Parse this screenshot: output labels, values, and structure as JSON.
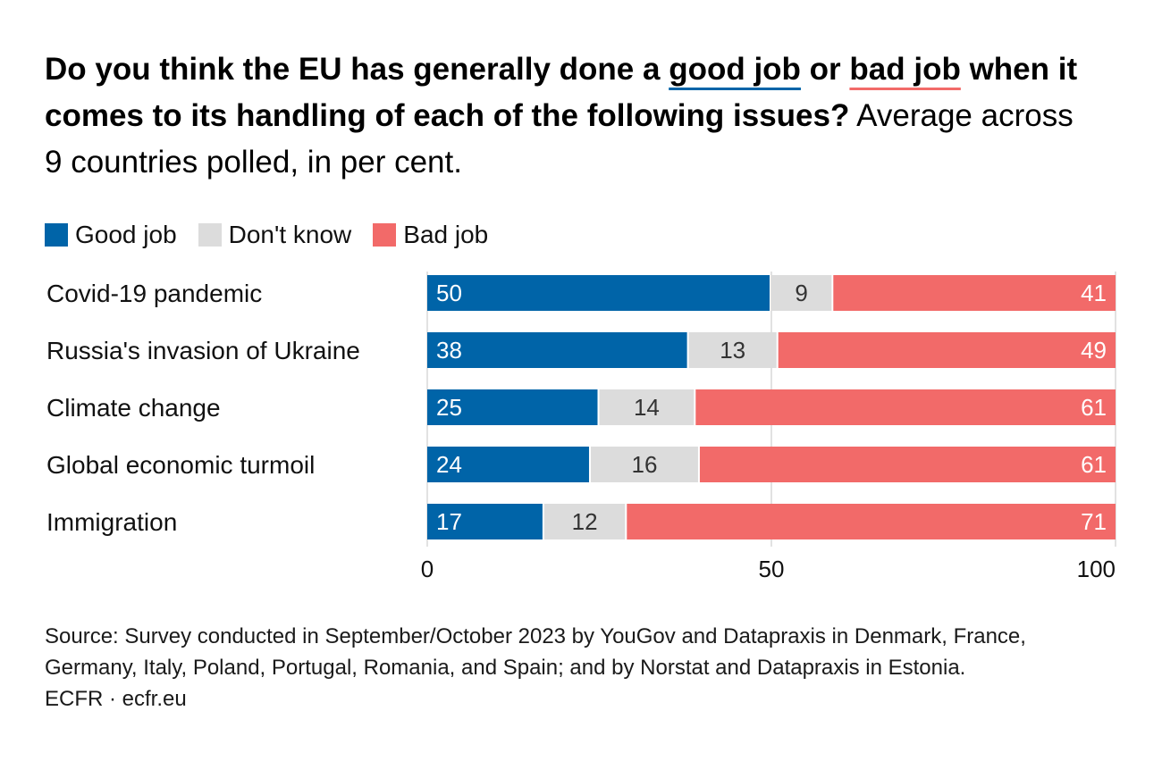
{
  "chart_data": {
    "type": "bar",
    "horizontal": true,
    "stacked": true,
    "title": {
      "part1": "Do you think the EU has generally done a",
      "good": "good job",
      "part2": "or",
      "bad": "bad job",
      "part3": "when it comes to its handling of each of the following issues?"
    },
    "subtitle": "Average across 9 countries polled, in per cent.",
    "categories": [
      "Covid-19 pandemic",
      "Russia's invasion of Ukraine",
      "Climate change",
      "Global economic turmoil",
      "Immigration"
    ],
    "series": [
      {
        "name": "Good job",
        "color": "#0064a8",
        "label_color": "#ffffff",
        "values": [
          50,
          38,
          25,
          24,
          17
        ]
      },
      {
        "name": "Don't know",
        "color": "#dcdcdc",
        "label_color": "#333333",
        "values": [
          9,
          13,
          14,
          16,
          12
        ]
      },
      {
        "name": "Bad job",
        "color": "#f26a69",
        "label_color": "#ffffff",
        "values": [
          41,
          49,
          61,
          61,
          71
        ]
      }
    ],
    "xlabel": "",
    "ylabel": "",
    "xlim": [
      0,
      100
    ],
    "xticks": [
      0,
      50,
      100
    ],
    "grid": true,
    "legend": "top-left"
  },
  "footer": {
    "source": "Source: Survey conducted in September/October 2023 by YouGov and Datapraxis in Denmark, France, Germany, Italy, Poland, Portugal, Romania, and Spain; and by Norstat and Datapraxis in Estonia.",
    "credit": "ECFR · ecfr.eu"
  }
}
